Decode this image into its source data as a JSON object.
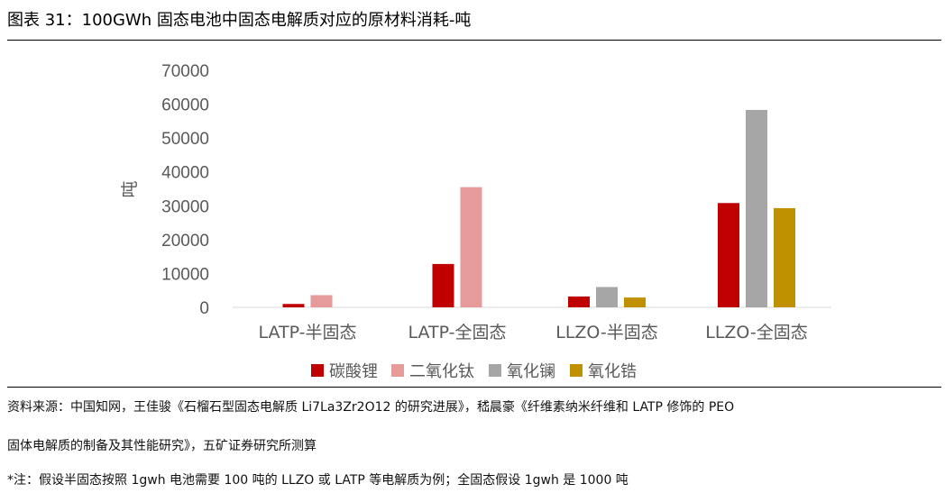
{
  "figure": {
    "title": "图表 31：100GWh 固态电池中固态电解质对应的原材料消耗-吨"
  },
  "chart_data": {
    "type": "bar",
    "categories": [
      "LATP-半固态",
      "LATP-全固态",
      "LLZO-半固态",
      "LLZO-全固态"
    ],
    "series": [
      {
        "name": "碳酸锂",
        "color": "#C00000",
        "values": [
          1000,
          12800,
          3200,
          30800
        ]
      },
      {
        "name": "二氧化钛",
        "color": "#E69A9A",
        "values": [
          3600,
          35500,
          null,
          null
        ]
      },
      {
        "name": "氧化镧",
        "color": "#A6A6A6",
        "values": [
          null,
          null,
          6000,
          58300
        ]
      },
      {
        "name": "氧化锆",
        "color": "#BF9000",
        "values": [
          null,
          null,
          2900,
          29300
        ]
      }
    ],
    "ylabel": "吨",
    "ylim": [
      0,
      70000
    ],
    "yticks": [
      "0",
      "10000",
      "20000",
      "30000",
      "40000",
      "50000",
      "60000",
      "70000"
    ],
    "grid": false,
    "legend_position": "bottom"
  },
  "notes": {
    "source_line1": "资料来源：中国知网，王佳骏《石榴石型固态电解质 Li7La3Zr2O12 的研究进展》，嵇晨豪《纤维素纳米纤维和 LATP 修饰的 PEO",
    "source_line2": "固体电解质的制备及其性能研究》，五矿证券研究所测算",
    "footnote": "*注：假设半固态按照 1gwh 电池需要 100 吨的 LLZO 或 LATP 等电解质为例；全固态假设 1gwh 是 1000 吨"
  }
}
